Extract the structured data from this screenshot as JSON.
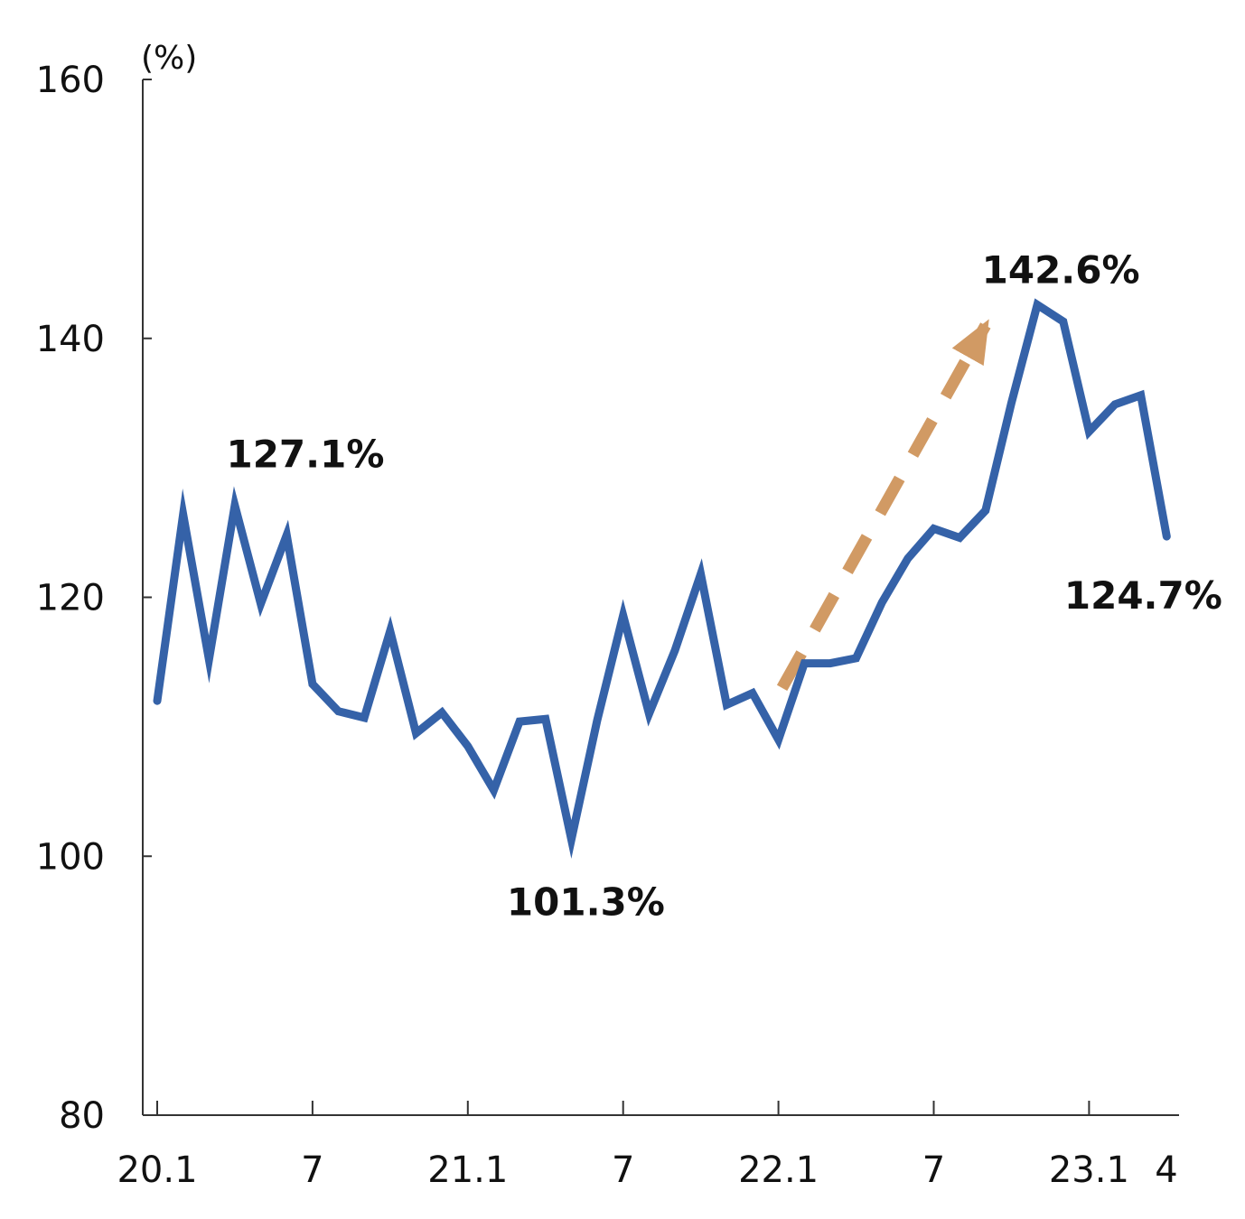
{
  "chart_data": {
    "type": "line",
    "title": "",
    "xlabel": "",
    "ylabel": "(%)",
    "ylim": [
      80,
      160
    ],
    "yticks": [
      80,
      100,
      120,
      140,
      160
    ],
    "grid": false,
    "legend": "none",
    "x": [
      "20.1",
      "20.2",
      "20.3",
      "20.4",
      "20.5",
      "20.6",
      "20.7",
      "20.8",
      "20.9",
      "20.10",
      "20.11",
      "20.12",
      "21.1",
      "21.2",
      "21.3",
      "21.4",
      "21.5",
      "21.6",
      "21.7",
      "21.8",
      "21.9",
      "21.10",
      "21.11",
      "21.12",
      "22.1",
      "22.2",
      "22.3",
      "22.4",
      "22.5",
      "22.6",
      "22.7",
      "22.8",
      "22.9",
      "22.10",
      "22.11",
      "22.12",
      "23.1",
      "23.2",
      "23.3",
      "23.4"
    ],
    "xtick_labels": [
      {
        "at": "20.1",
        "label": "20.1"
      },
      {
        "at": "20.7",
        "label": "7"
      },
      {
        "at": "21.1",
        "label": "21.1"
      },
      {
        "at": "21.7",
        "label": "7"
      },
      {
        "at": "22.1",
        "label": "22.1"
      },
      {
        "at": "22.7",
        "label": "7"
      },
      {
        "at": "23.1",
        "label": "23.1"
      },
      {
        "at": "23.4",
        "label": "4"
      }
    ],
    "series": [
      {
        "color": "#3562A8",
        "values": [
          112.0,
          126.4,
          115.2,
          127.1,
          119.5,
          124.8,
          113.3,
          111.2,
          110.7,
          117.4,
          109.5,
          111.1,
          108.5,
          105.1,
          110.4,
          110.6,
          101.3,
          110.5,
          118.6,
          111.0,
          115.9,
          121.8,
          111.7,
          112.6,
          109.0,
          114.9,
          114.9,
          115.3,
          119.6,
          123.0,
          125.3,
          124.6,
          126.7,
          135.0,
          142.6,
          141.3,
          132.8,
          134.9,
          135.6,
          124.7
        ]
      }
    ],
    "annotations": [
      {
        "text": "127.1%",
        "at": "20.4",
        "value": 127.1
      },
      {
        "text": "101.3%",
        "at": "21.5",
        "value": 101.3
      },
      {
        "text": "142.6%",
        "at": "22.11",
        "value": 142.6
      },
      {
        "text": "124.7%",
        "at": "23.4",
        "value": 124.7
      }
    ],
    "trend_arrow": {
      "color": "#D19A64",
      "style": "dashed",
      "from": {
        "at": "22.1",
        "value": 113.0
      },
      "to": {
        "at": "22.9",
        "value": 141.0
      }
    }
  }
}
